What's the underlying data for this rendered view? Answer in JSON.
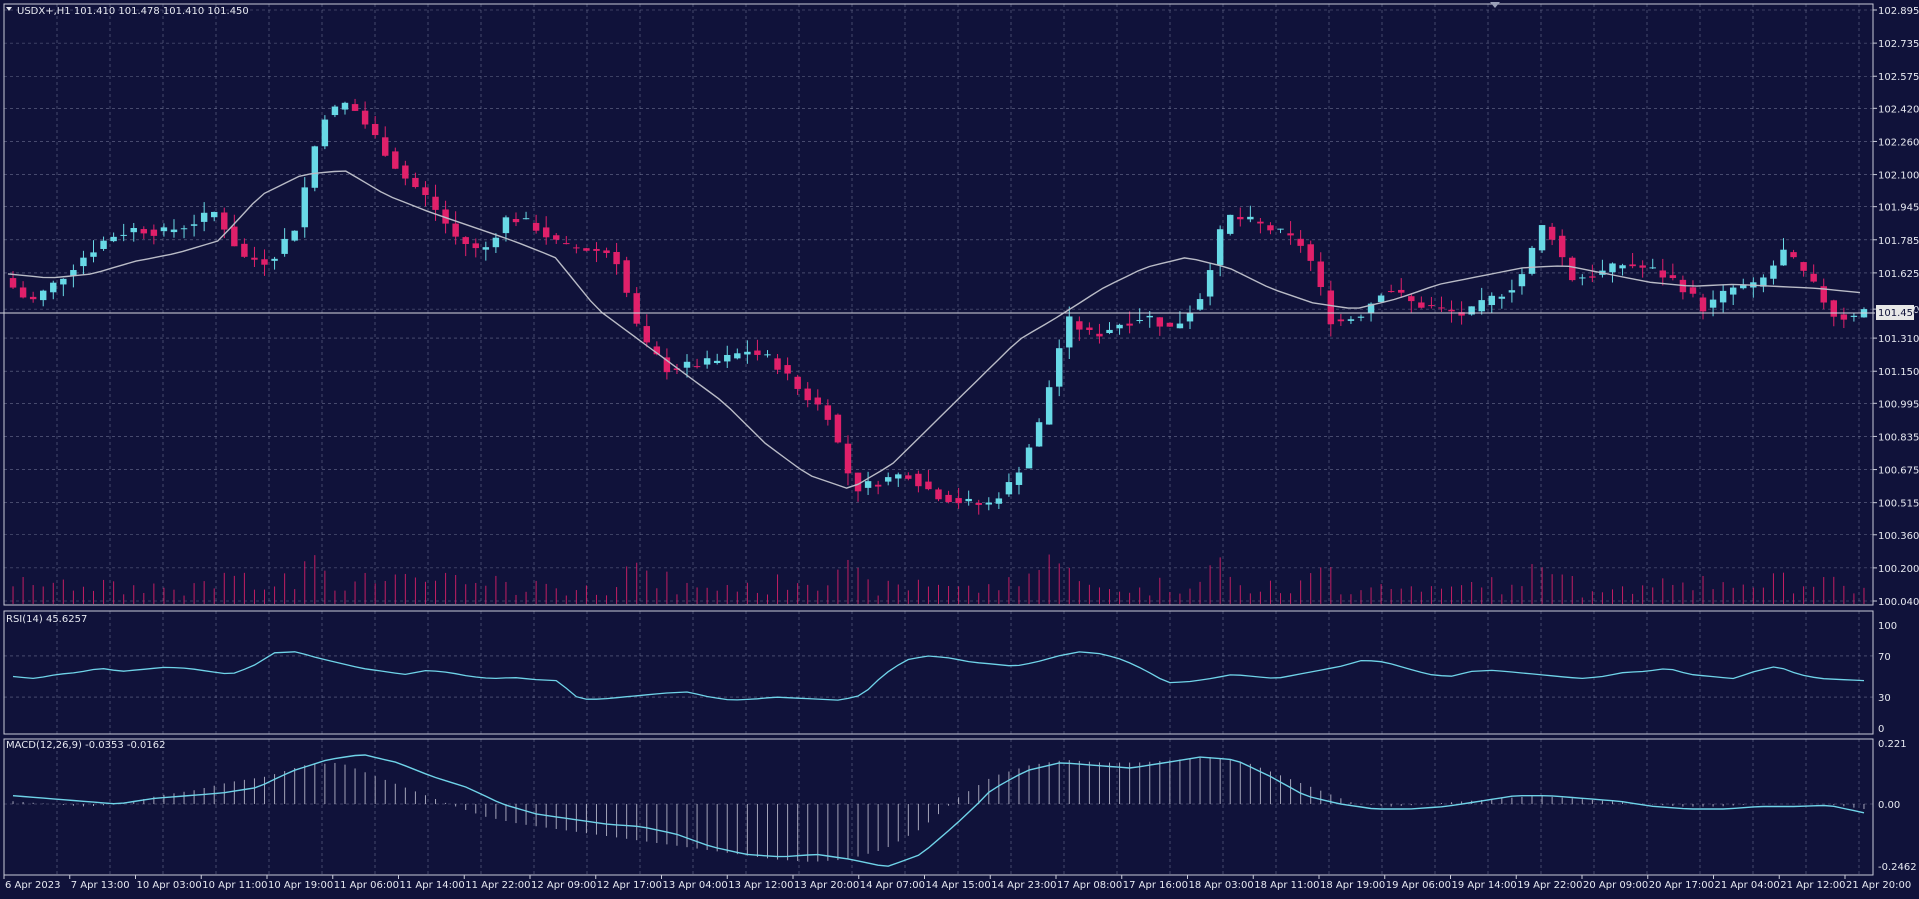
{
  "header": {
    "symbol_info": "USDX+,H1  101.410 101.478 101.410 101.450"
  },
  "colors": {
    "background": "#10123a",
    "grid": "#8e94b0",
    "bull_candle": "#68d9e6",
    "bear_candle": "#e0206a",
    "volume": "#e0206a",
    "moving_average": "#b9bbc6",
    "rsi_line": "#6fd3e8",
    "macd_line": "#6fd3e8",
    "macd_histogram": "#c8c8d8",
    "axis_text": "#e6e8f0",
    "price_tag_bg": "#e8e8e8"
  },
  "price_axis": {
    "labels": [
      "102.895",
      "102.735",
      "102.575",
      "102.420",
      "102.260",
      "102.100",
      "101.945",
      "101.785",
      "101.625",
      "101.450",
      "101.310",
      "101.150",
      "100.995",
      "100.835",
      "100.675",
      "100.515",
      "100.360",
      "100.200",
      "100.040"
    ],
    "current_price": "101.450"
  },
  "rsi_panel": {
    "label": "RSI(14) 45.6257",
    "levels": [
      "100",
      "70",
      "30",
      "0"
    ]
  },
  "macd_panel": {
    "label": "MACD(12,26,9) -0.0353 -0.0162",
    "levels": [
      "0.221",
      "0.00",
      "-0.2462"
    ]
  },
  "time_axis": {
    "labels": [
      "6 Apr 2023",
      "7 Apr 13:00",
      "10 Apr 03:00",
      "10 Apr 11:00",
      "10 Apr 19:00",
      "11 Apr 06:00",
      "11 Apr 14:00",
      "11 Apr 22:00",
      "12 Apr 09:00",
      "12 Apr 17:00",
      "13 Apr 04:00",
      "13 Apr 12:00",
      "13 Apr 20:00",
      "14 Apr 07:00",
      "14 Apr 15:00",
      "14 Apr 23:00",
      "17 Apr 08:00",
      "17 Apr 16:00",
      "18 Apr 03:00",
      "18 Apr 11:00",
      "18 Apr 19:00",
      "19 Apr 06:00",
      "19 Apr 14:00",
      "19 Apr 22:00",
      "20 Apr 09:00",
      "20 Apr 17:00",
      "21 Apr 04:00",
      "21 Apr 12:00",
      "21 Apr 20:00"
    ]
  },
  "chart_data": [
    {
      "type": "candlestick",
      "symbol": "USDX+",
      "timeframe": "H1",
      "last_bar": {
        "open": 101.41,
        "high": 101.478,
        "low": 101.41,
        "close": 101.45
      },
      "ylim": [
        100.04,
        102.895
      ],
      "close_path": [
        101.6,
        101.48,
        101.58,
        101.7,
        101.8,
        101.84,
        101.82,
        101.86,
        101.92,
        101.7,
        101.68,
        101.85,
        102.38,
        102.45,
        102.28,
        102.1,
        101.98,
        101.8,
        101.72,
        101.9,
        101.85,
        101.75,
        101.74,
        101.72,
        101.3,
        101.16,
        101.18,
        101.2,
        101.25,
        101.2,
        101.05,
        100.95,
        100.58,
        100.62,
        100.66,
        100.56,
        100.52,
        100.5,
        100.62,
        100.9,
        101.4,
        101.32,
        101.38,
        101.42,
        101.35,
        101.5,
        101.9,
        101.87,
        101.82,
        101.75,
        101.38,
        101.42,
        101.56,
        101.48,
        101.45,
        101.42,
        101.5,
        101.58,
        101.88,
        101.6,
        101.62,
        101.67,
        101.64,
        101.58,
        101.45,
        101.55,
        101.56,
        101.73,
        101.58,
        101.4,
        101.45
      ],
      "ma_path": [
        101.62,
        101.6,
        101.62,
        101.68,
        101.72,
        101.78,
        102.0,
        102.1,
        102.12,
        102.0,
        101.92,
        101.85,
        101.78,
        101.7,
        101.45,
        101.3,
        101.15,
        101.0,
        100.8,
        100.65,
        100.58,
        100.7,
        100.9,
        101.1,
        101.3,
        101.42,
        101.55,
        101.65,
        101.7,
        101.65,
        101.55,
        101.48,
        101.45,
        101.5,
        101.57,
        101.61,
        101.65,
        101.66,
        101.62,
        101.58,
        101.56,
        101.57,
        101.56,
        101.55,
        101.53
      ],
      "volume_range": [
        0,
        1
      ]
    },
    {
      "type": "line",
      "name": "RSI(14)",
      "last_value": 45.6257,
      "ylim": [
        0,
        100
      ],
      "levels": [
        30,
        70
      ],
      "values": [
        50,
        48,
        52,
        54,
        58,
        55,
        57,
        59,
        58,
        55,
        52,
        60,
        73,
        74,
        68,
        63,
        58,
        55,
        52,
        56,
        54,
        50,
        48,
        49,
        47,
        46,
        28,
        28,
        30,
        32,
        34,
        35,
        30,
        27,
        28,
        30,
        29,
        28,
        27,
        32,
        52,
        66,
        70,
        68,
        64,
        62,
        60,
        64,
        70,
        74,
        72,
        66,
        56,
        44,
        45,
        48,
        52,
        50,
        48,
        52,
        56,
        60,
        66,
        64,
        58,
        52,
        50,
        55,
        56,
        54,
        52,
        50,
        48,
        50,
        54,
        55,
        58,
        52,
        50,
        48,
        55,
        60,
        52,
        48,
        47,
        46
      ]
    },
    {
      "type": "macd",
      "name": "MACD(12,26,9)",
      "last_main": -0.0353,
      "last_signal": -0.0162,
      "ylim": [
        -0.2462,
        0.221
      ],
      "main": [
        0.03,
        0.02,
        0.01,
        0.0,
        0.02,
        0.03,
        0.04,
        0.06,
        0.12,
        0.16,
        0.18,
        0.15,
        0.1,
        0.06,
        0.0,
        -0.04,
        -0.06,
        -0.08,
        -0.09,
        -0.12,
        -0.17,
        -0.2,
        -0.21,
        -0.2,
        -0.22,
        -0.25,
        -0.2,
        -0.08,
        0.05,
        0.12,
        0.15,
        0.14,
        0.13,
        0.15,
        0.17,
        0.16,
        0.1,
        0.03,
        0.0,
        -0.02,
        -0.02,
        -0.01,
        0.01,
        0.03,
        0.03,
        0.02,
        0.01,
        -0.01,
        -0.02,
        -0.02,
        -0.01,
        -0.01,
        -0.005,
        -0.035
      ],
      "histogram": [
        0.01,
        0.0,
        -0.01,
        0.0,
        0.03,
        0.05,
        0.08,
        0.1,
        0.14,
        0.15,
        0.1,
        0.05,
        0.0,
        -0.05,
        -0.08,
        -0.1,
        -0.12,
        -0.14,
        -0.16,
        -0.18,
        -0.2,
        -0.22,
        -0.23,
        -0.22,
        -0.18,
        -0.1,
        0.02,
        0.1,
        0.14,
        0.16,
        0.15,
        0.15,
        0.16,
        0.17,
        0.15,
        0.1,
        0.05,
        0.0,
        -0.01,
        0.0,
        0.01,
        0.02,
        0.03,
        0.02,
        0.01,
        0.0,
        -0.01,
        -0.01,
        0.0,
        0.0,
        0.0,
        -0.02
      ]
    }
  ]
}
